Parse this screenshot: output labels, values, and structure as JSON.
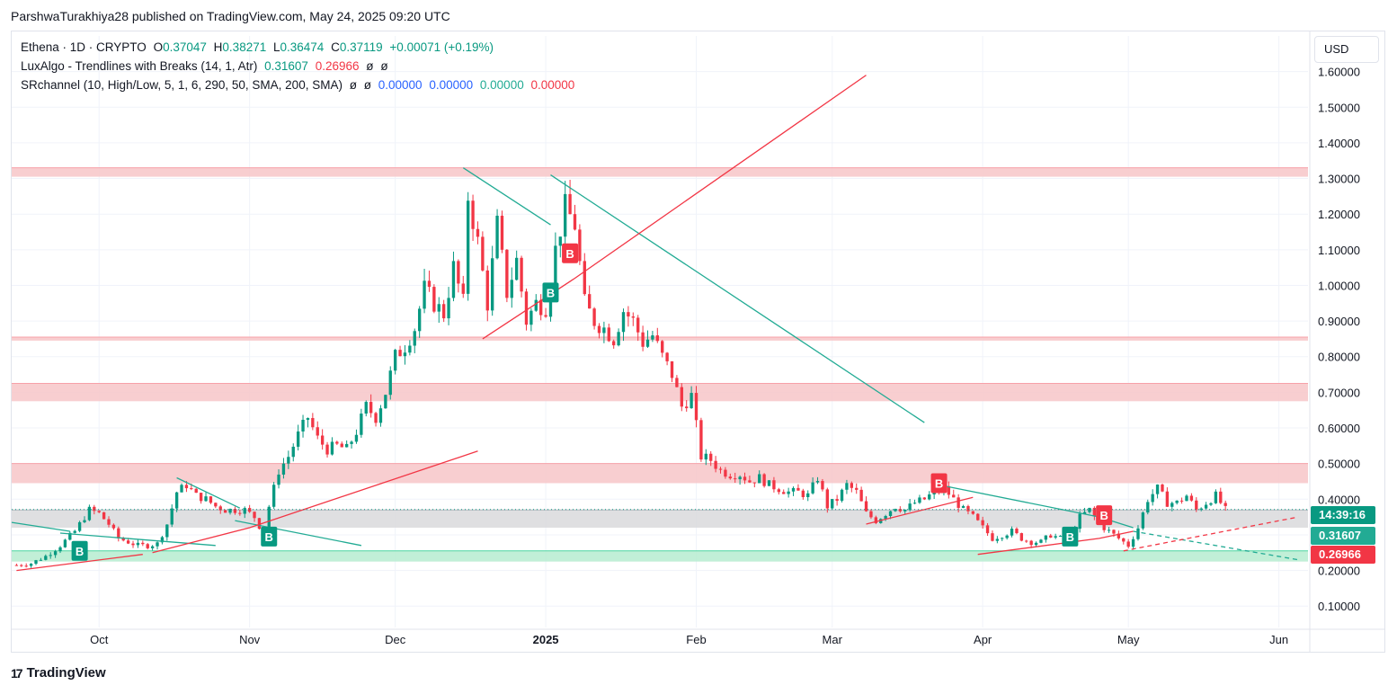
{
  "header": {
    "publisher_line": "ParshwaTurakhiya28 published on TradingView.com, May 24, 2025 09:20 UTC"
  },
  "legend": {
    "symbol": "Ethena · 1D · CRYPTO",
    "o_label": "O",
    "o_value": "0.37047",
    "h_label": "H",
    "h_value": "0.38271",
    "l_label": "L",
    "l_value": "0.36474",
    "c_label": "C",
    "c_value": "0.37119",
    "change": "+0.00071 (+0.19%)",
    "indicator1_name": "LuxAlgo - Trendlines with Breaks (14, 1, Atr)",
    "indicator1_v1": "0.31607",
    "indicator1_v2": "0.26966",
    "indicator1_v3": "ø",
    "indicator1_v4": "ø",
    "indicator2_name": "SRchannel (10, High/Low, 5, 1, 6, 290, 50, SMA, 200, SMA)",
    "indicator2_v1": "ø",
    "indicator2_v2": "ø",
    "indicator2_v3": "0.00000",
    "indicator2_v4": "0.00000",
    "indicator2_v5": "0.00000",
    "indicator2_v6": "0.00000"
  },
  "currency": "USD",
  "price_tags": {
    "countdown": "14:39:16",
    "upper_trend": "0.31607",
    "lower_trend": "0.26966"
  },
  "footer": {
    "brand": "TradingView",
    "logo_glyph": "17"
  },
  "colors": {
    "up": "#089981",
    "down": "#f23645",
    "resistance_zone": "#f7c5c8",
    "support_zone": "#b6ecd0",
    "neutral_zone": "#d9d9dc",
    "teal_line": "#22ab94",
    "red_line": "#f23645"
  },
  "chart_data": {
    "type": "candlestick",
    "title": "Ethena · 1D · CRYPTO",
    "ylim": [
      0.04,
      1.7
    ],
    "y_ticks": [
      0.1,
      0.2,
      0.3,
      0.4,
      0.5,
      0.6,
      0.7,
      0.8,
      0.9,
      1.0,
      1.1,
      1.2,
      1.3,
      1.4,
      1.5,
      1.6
    ],
    "y_tick_labels": [
      "0.10000",
      "0.20000",
      "0.30000",
      "0.40000",
      "0.50000",
      "0.60000",
      "0.70000",
      "0.80000",
      "0.90000",
      "1.00000",
      "1.10000",
      "1.20000",
      "1.30000",
      "1.40000",
      "1.50000",
      "1.60000"
    ],
    "x_ticks": [
      {
        "label": "Oct",
        "day": 17
      },
      {
        "label": "Nov",
        "day": 48
      },
      {
        "label": "Dec",
        "day": 78
      },
      {
        "label": "2025",
        "day": 109,
        "bold": true
      },
      {
        "label": "Feb",
        "day": 140
      },
      {
        "label": "Mar",
        "day": 168
      },
      {
        "label": "Apr",
        "day": 199
      },
      {
        "label": "May",
        "day": 229
      },
      {
        "label": "Jun",
        "day": 260
      }
    ],
    "x_range_days": [
      -1,
      266
    ],
    "close_path": [
      [
        0,
        0.215
      ],
      [
        3,
        0.22
      ],
      [
        6,
        0.24
      ],
      [
        9,
        0.27
      ],
      [
        12,
        0.31
      ],
      [
        15,
        0.37
      ],
      [
        17,
        0.36
      ],
      [
        19,
        0.33
      ],
      [
        21,
        0.29
      ],
      [
        23,
        0.28
      ],
      [
        25,
        0.27
      ],
      [
        27,
        0.27
      ],
      [
        29,
        0.275
      ],
      [
        31,
        0.33
      ],
      [
        33,
        0.42
      ],
      [
        35,
        0.44
      ],
      [
        37,
        0.41
      ],
      [
        39,
        0.4
      ],
      [
        41,
        0.38
      ],
      [
        43,
        0.37
      ],
      [
        45,
        0.37
      ],
      [
        47,
        0.37
      ],
      [
        49,
        0.35
      ],
      [
        51,
        0.3
      ],
      [
        52,
        0.38
      ],
      [
        54,
        0.48
      ],
      [
        56,
        0.52
      ],
      [
        58,
        0.58
      ],
      [
        60,
        0.63
      ],
      [
        62,
        0.57
      ],
      [
        64,
        0.54
      ],
      [
        66,
        0.55
      ],
      [
        68,
        0.54
      ],
      [
        70,
        0.59
      ],
      [
        72,
        0.66
      ],
      [
        74,
        0.63
      ],
      [
        76,
        0.7
      ],
      [
        78,
        0.8
      ],
      [
        80,
        0.83
      ],
      [
        82,
        0.88
      ],
      [
        84,
        0.99
      ],
      [
        86,
        0.95
      ],
      [
        88,
        0.92
      ],
      [
        90,
        1.05
      ],
      [
        92,
        0.95
      ],
      [
        93,
        1.25
      ],
      [
        95,
        1.12
      ],
      [
        97,
        0.95
      ],
      [
        99,
        1.17
      ],
      [
        101,
        0.98
      ],
      [
        103,
        1.07
      ],
      [
        105,
        0.9
      ],
      [
        107,
        0.95
      ],
      [
        109,
        0.94
      ],
      [
        111,
        1.1
      ],
      [
        113,
        1.22
      ],
      [
        115,
        1.17
      ],
      [
        117,
        0.95
      ],
      [
        119,
        0.9
      ],
      [
        121,
        0.88
      ],
      [
        123,
        0.85
      ],
      [
        125,
        0.93
      ],
      [
        127,
        0.9
      ],
      [
        129,
        0.84
      ],
      [
        131,
        0.86
      ],
      [
        133,
        0.8
      ],
      [
        135,
        0.75
      ],
      [
        137,
        0.66
      ],
      [
        139,
        0.69
      ],
      [
        141,
        0.52
      ],
      [
        143,
        0.51
      ],
      [
        145,
        0.48
      ],
      [
        147,
        0.47
      ],
      [
        149,
        0.47
      ],
      [
        151,
        0.45
      ],
      [
        153,
        0.46
      ],
      [
        155,
        0.44
      ],
      [
        157,
        0.43
      ],
      [
        159,
        0.42
      ],
      [
        161,
        0.42
      ],
      [
        163,
        0.41
      ],
      [
        165,
        0.46
      ],
      [
        167,
        0.38
      ],
      [
        169,
        0.4
      ],
      [
        171,
        0.44
      ],
      [
        173,
        0.42
      ],
      [
        175,
        0.36
      ],
      [
        177,
        0.34
      ],
      [
        179,
        0.36
      ],
      [
        181,
        0.38
      ],
      [
        183,
        0.37
      ],
      [
        185,
        0.39
      ],
      [
        187,
        0.4
      ],
      [
        189,
        0.42
      ],
      [
        191,
        0.43
      ],
      [
        193,
        0.4
      ],
      [
        195,
        0.37
      ],
      [
        197,
        0.35
      ],
      [
        199,
        0.32
      ],
      [
        201,
        0.29
      ],
      [
        203,
        0.3
      ],
      [
        205,
        0.31
      ],
      [
        207,
        0.29
      ],
      [
        209,
        0.28
      ],
      [
        211,
        0.28
      ],
      [
        213,
        0.3
      ],
      [
        215,
        0.29
      ],
      [
        217,
        0.3
      ],
      [
        219,
        0.35
      ],
      [
        221,
        0.37
      ],
      [
        223,
        0.33
      ],
      [
        225,
        0.31
      ],
      [
        227,
        0.29
      ],
      [
        229,
        0.27
      ],
      [
        231,
        0.32
      ],
      [
        233,
        0.4
      ],
      [
        235,
        0.43
      ],
      [
        237,
        0.39
      ],
      [
        239,
        0.39
      ],
      [
        241,
        0.41
      ],
      [
        243,
        0.37
      ],
      [
        245,
        0.39
      ],
      [
        247,
        0.41
      ],
      [
        249,
        0.37
      ]
    ],
    "zones": [
      {
        "low": 1.305,
        "high": 1.33,
        "kind": "resistance"
      },
      {
        "low": 0.845,
        "high": 0.855,
        "kind": "resistance"
      },
      {
        "low": 0.675,
        "high": 0.725,
        "kind": "resistance"
      },
      {
        "low": 0.445,
        "high": 0.5,
        "kind": "resistance"
      },
      {
        "low": 0.32,
        "high": 0.37,
        "kind": "neutral"
      },
      {
        "low": 0.225,
        "high": 0.255,
        "kind": "support"
      }
    ],
    "trendlines": [
      {
        "color": "teal",
        "points": [
          [
            -1,
            0.335
          ],
          [
            11,
            0.31
          ]
        ]
      },
      {
        "color": "teal",
        "points": [
          [
            33,
            0.46
          ],
          [
            46,
            0.375
          ]
        ]
      },
      {
        "color": "teal",
        "points": [
          [
            9,
            0.305
          ],
          [
            41,
            0.27
          ]
        ]
      },
      {
        "color": "teal",
        "points": [
          [
            45,
            0.34
          ],
          [
            71,
            0.27
          ]
        ]
      },
      {
        "color": "red",
        "points": [
          [
            0,
            0.2
          ],
          [
            26,
            0.245
          ]
        ]
      },
      {
        "color": "red",
        "points": [
          [
            28,
            0.25
          ],
          [
            48,
            0.32
          ],
          [
            95,
            0.535
          ]
        ]
      },
      {
        "color": "teal",
        "points": [
          [
            92,
            1.33
          ],
          [
            110,
            1.17
          ]
        ]
      },
      {
        "color": "teal",
        "points": [
          [
            110,
            1.31
          ],
          [
            187,
            0.615
          ]
        ]
      },
      {
        "color": "red",
        "points": [
          [
            96,
            0.85
          ],
          [
            115,
            1.02
          ],
          [
            175,
            1.59
          ]
        ]
      },
      {
        "color": "red",
        "points": [
          [
            175,
            0.33
          ],
          [
            197,
            0.405
          ]
        ]
      },
      {
        "color": "teal",
        "points": [
          [
            190,
            0.44
          ],
          [
            223,
            0.35
          ],
          [
            230,
            0.32
          ]
        ]
      },
      {
        "color": "red",
        "points": [
          [
            198,
            0.245
          ],
          [
            223,
            0.29
          ],
          [
            230,
            0.31
          ]
        ]
      },
      {
        "color": "teal",
        "points": [
          [
            230,
            0.31
          ],
          [
            264,
            0.23
          ]
        ],
        "dashed": true
      },
      {
        "color": "red",
        "points": [
          [
            228,
            0.255
          ],
          [
            264,
            0.35
          ]
        ],
        "dashed": true
      }
    ],
    "signals": [
      {
        "label": "B",
        "day": 13,
        "price": 0.255,
        "kind": "buy"
      },
      {
        "label": "B",
        "day": 52,
        "price": 0.295,
        "kind": "buy"
      },
      {
        "label": "B",
        "day": 110,
        "price": 0.98,
        "kind": "buy"
      },
      {
        "label": "B",
        "day": 114,
        "price": 1.09,
        "kind": "sell"
      },
      {
        "label": "B",
        "day": 190,
        "price": 0.445,
        "kind": "sell"
      },
      {
        "label": "B",
        "day": 217,
        "price": 0.295,
        "kind": "buy"
      },
      {
        "label": "B",
        "day": 224,
        "price": 0.355,
        "kind": "sell"
      }
    ],
    "last_price": 0.37119
  }
}
